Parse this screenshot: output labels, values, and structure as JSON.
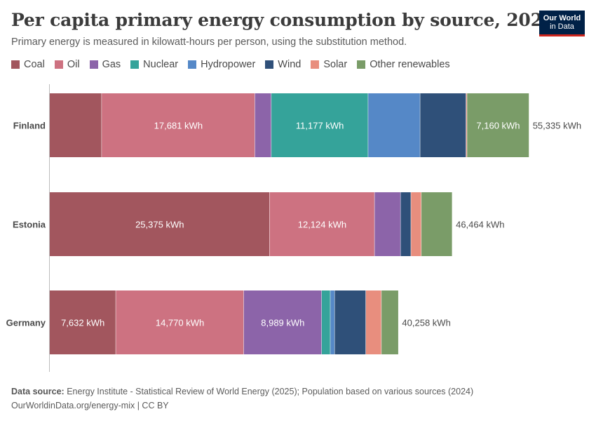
{
  "header": {
    "title": "Per capita primary energy consumption by source, 2022",
    "subtitle": "Primary energy is measured in kilowatt-hours per person, using the substitution method.",
    "logo_line1": "Our World",
    "logo_line2": "in Data"
  },
  "footer": {
    "source_label": "Data source:",
    "source_text": "Energy Institute - Statistical Review of World Energy (2025); Population based on various sources (2024)",
    "url_text": "OurWorldinData.org/energy-mix | CC BY"
  },
  "colors": {
    "logo_bg": "#002147",
    "logo_accent": "#ce261e"
  },
  "chart_data": {
    "type": "bar",
    "orientation": "horizontal",
    "stacked": true,
    "unit": "kWh",
    "xlim": [
      0,
      59000
    ],
    "grid": false,
    "legend_position": "top",
    "categories": [
      "Finland",
      "Estonia",
      "Germany"
    ],
    "totals": [
      55335,
      46464,
      40258
    ],
    "total_labels": [
      "55,335 kWh",
      "46,464 kWh",
      "40,258 kWh"
    ],
    "series": [
      {
        "name": "Coal",
        "color": "#a2565e",
        "values": [
          6000,
          25375,
          7632
        ],
        "labels": [
          "",
          "25,375 kWh",
          "7,632 kWh"
        ]
      },
      {
        "name": "Oil",
        "color": "#cd7281",
        "values": [
          17681,
          12124,
          14770
        ],
        "labels": [
          "17,681 kWh",
          "12,124 kWh",
          "14,770 kWh"
        ]
      },
      {
        "name": "Gas",
        "color": "#8c64a9",
        "values": [
          1900,
          3000,
          8989
        ],
        "labels": [
          "",
          "",
          "8,989 kWh"
        ]
      },
      {
        "name": "Nuclear",
        "color": "#35a39a",
        "values": [
          11177,
          0,
          1000
        ],
        "labels": [
          "11,177 kWh",
          "",
          ""
        ]
      },
      {
        "name": "Hydropower",
        "color": "#5588c7",
        "values": [
          6000,
          0,
          500
        ],
        "labels": [
          "",
          "",
          ""
        ]
      },
      {
        "name": "Wind",
        "color": "#2f5079",
        "values": [
          5300,
          1200,
          3600
        ],
        "labels": [
          "",
          "",
          ""
        ]
      },
      {
        "name": "Solar",
        "color": "#e88e7e",
        "values": [
          117,
          1200,
          1800
        ],
        "labels": [
          "",
          "",
          ""
        ]
      },
      {
        "name": "Other renewables",
        "color": "#7a9c68",
        "values": [
          7160,
          3565,
          1967
        ],
        "labels": [
          "7,160 kWh",
          "",
          ""
        ]
      }
    ]
  }
}
